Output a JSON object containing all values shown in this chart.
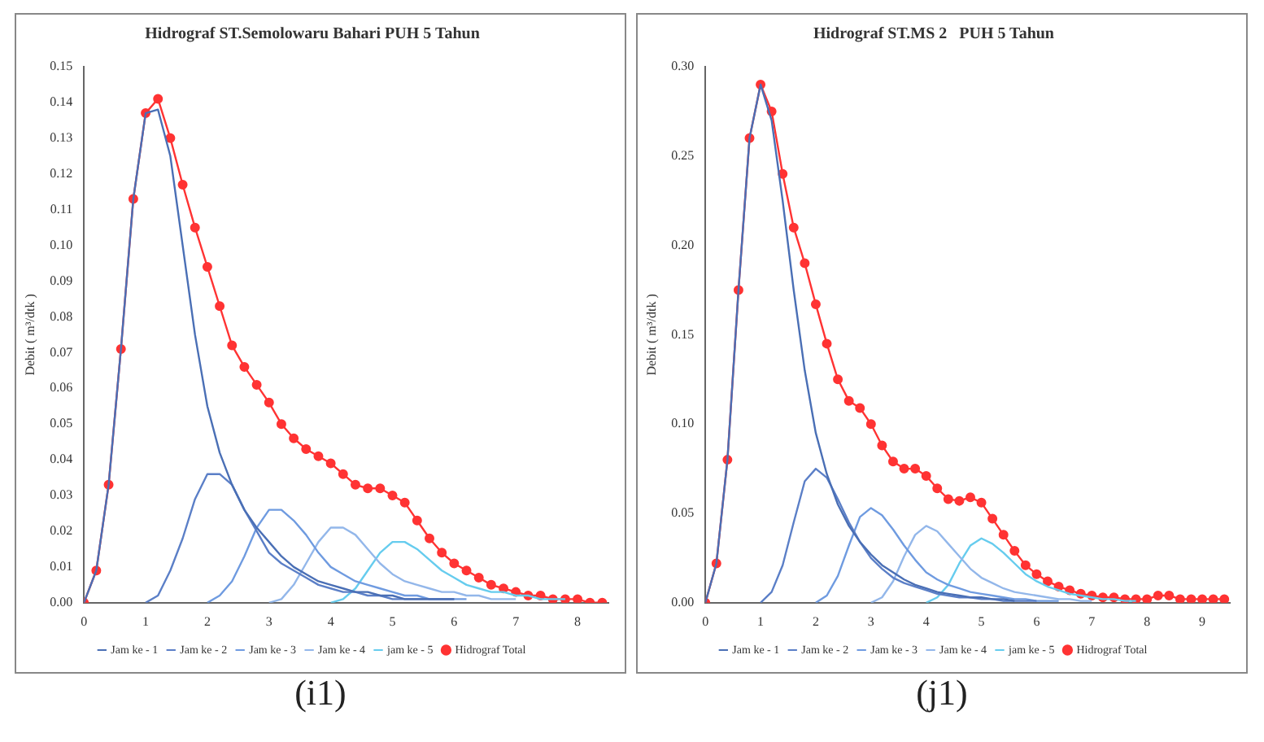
{
  "chart_data": [
    {
      "type": "line",
      "title": "Hidrograf ST.Semolowaru Bahari PUH 5 Tahun",
      "ylabel": "Debit ( m³/dtk )",
      "annotations": [
        "(i1)"
      ],
      "legend": "bottom",
      "grid": false,
      "x": [
        0,
        0.2,
        0.4,
        0.6,
        0.8,
        1,
        1.2,
        1.4,
        1.6,
        1.8,
        2,
        2.2,
        2.4,
        2.6,
        2.8,
        3,
        3.2,
        3.4,
        3.6,
        3.8,
        4,
        4.2,
        4.4,
        4.6,
        4.8,
        5,
        5.2,
        5.4,
        5.6,
        5.8,
        6,
        6.2,
        6.4,
        6.6,
        6.8,
        7,
        7.2,
        7.4,
        7.6,
        7.8,
        8,
        8.2,
        8.4
      ],
      "xlim": [
        0,
        8.5
      ],
      "xticks": [
        0,
        1,
        2,
        3,
        4,
        5,
        6,
        7,
        8
      ],
      "ylim": [
        0,
        0.15
      ],
      "yticks": [
        {
          "value": 0,
          "label": "0.00"
        },
        {
          "value": 0.01,
          "label": "0.01"
        },
        {
          "value": 0.02,
          "label": "0.02"
        },
        {
          "value": 0.03,
          "label": "0.03"
        },
        {
          "value": 0.04,
          "label": "0.04"
        },
        {
          "value": 0.05,
          "label": "0.05"
        },
        {
          "value": 0.06,
          "label": "0.06"
        },
        {
          "value": 0.07,
          "label": "0.07"
        },
        {
          "value": 0.08,
          "label": "0.08"
        },
        {
          "value": 0.09,
          "label": "0.09"
        },
        {
          "value": 0.1,
          "label": "0.10"
        },
        {
          "value": 0.11,
          "label": "0.11"
        },
        {
          "value": 0.12,
          "label": "0.12"
        },
        {
          "value": 0.13,
          "label": "0.13"
        },
        {
          "value": 0.14,
          "label": "0.14"
        },
        {
          "value": 0.15,
          "label": "0.15"
        }
      ],
      "series": [
        {
          "name": "Jam ke - 1",
          "color": "#4a6fb5",
          "marker": "none",
          "values": [
            0,
            0.009,
            0.033,
            0.071,
            0.113,
            0.137,
            0.138,
            0.125,
            0.1,
            0.075,
            0.055,
            0.042,
            0.033,
            0.026,
            0.021,
            0.017,
            0.013,
            0.01,
            0.008,
            0.006,
            0.005,
            0.004,
            0.003,
            0.003,
            0.002,
            0.002,
            0.001,
            0.001,
            0.001,
            0.001,
            0.001,
            null,
            null,
            null,
            null,
            null,
            null,
            null,
            null,
            null,
            null,
            null,
            null
          ]
        },
        {
          "name": "Jam ke - 2",
          "color": "#5b7fc7",
          "marker": "none",
          "values": [
            null,
            null,
            null,
            null,
            null,
            0,
            0.002,
            0.009,
            0.018,
            0.029,
            0.036,
            0.036,
            0.033,
            0.026,
            0.02,
            0.014,
            0.011,
            0.009,
            0.007,
            0.005,
            0.004,
            0.003,
            0.003,
            0.002,
            0.002,
            0.001,
            0.001,
            0.001,
            0.001,
            0.001,
            0.001,
            null,
            null,
            null,
            null,
            null,
            null,
            null,
            null,
            null,
            null,
            null,
            null
          ]
        },
        {
          "name": "Jam ke - 3",
          "color": "#6f9be0",
          "marker": "none",
          "values": [
            null,
            null,
            null,
            null,
            null,
            null,
            null,
            null,
            null,
            null,
            0,
            0.002,
            0.006,
            0.013,
            0.021,
            0.026,
            0.026,
            0.023,
            0.019,
            0.014,
            0.01,
            0.008,
            0.006,
            0.005,
            0.004,
            0.003,
            0.002,
            0.002,
            0.001,
            0.001,
            0.001,
            0.001,
            null,
            null,
            null,
            null,
            null,
            null,
            null,
            null,
            null,
            null,
            null
          ]
        },
        {
          "name": "Jam ke - 4",
          "color": "#93b7ea",
          "marker": "none",
          "values": [
            null,
            null,
            null,
            null,
            null,
            null,
            null,
            null,
            null,
            null,
            null,
            null,
            null,
            null,
            null,
            0,
            0.001,
            0.005,
            0.011,
            0.017,
            0.021,
            0.021,
            0.019,
            0.015,
            0.011,
            0.008,
            0.006,
            0.005,
            0.004,
            0.003,
            0.003,
            0.002,
            0.002,
            0.001,
            0.001,
            0.001,
            null,
            null,
            null,
            null,
            null,
            null,
            null
          ]
        },
        {
          "name": "jam ke - 5",
          "color": "#66ccee",
          "marker": "none",
          "values": [
            null,
            null,
            null,
            null,
            null,
            null,
            null,
            null,
            null,
            null,
            null,
            null,
            null,
            null,
            null,
            null,
            null,
            null,
            null,
            null,
            0,
            0.001,
            0.004,
            0.009,
            0.014,
            0.017,
            0.017,
            0.015,
            0.012,
            0.009,
            0.007,
            0.005,
            0.004,
            0.003,
            0.003,
            0.002,
            0.002,
            0.001,
            0.001,
            0.001,
            null,
            null,
            null
          ]
        },
        {
          "name": "Hidrograf Total",
          "color": "#ff3333",
          "marker": "circle",
          "values": [
            0,
            0.009,
            0.033,
            0.071,
            0.113,
            0.137,
            0.141,
            0.13,
            0.117,
            0.105,
            0.094,
            0.083,
            0.072,
            0.066,
            0.061,
            0.056,
            0.05,
            0.046,
            0.043,
            0.041,
            0.039,
            0.036,
            0.033,
            0.032,
            0.032,
            0.03,
            0.028,
            0.023,
            0.018,
            0.014,
            0.011,
            0.009,
            0.007,
            0.005,
            0.004,
            0.003,
            0.002,
            0.002,
            0.001,
            0.001,
            0.001,
            0,
            0
          ]
        }
      ]
    },
    {
      "type": "line",
      "title": "Hidrograf ST.MS 2   PUH 5 Tahun",
      "ylabel": "Debit ( m³/dtk )",
      "annotations": [
        "(j1)"
      ],
      "legend": "bottom",
      "grid": false,
      "x": [
        0,
        0.2,
        0.4,
        0.6,
        0.8,
        1,
        1.2,
        1.4,
        1.6,
        1.8,
        2,
        2.2,
        2.4,
        2.6,
        2.8,
        3,
        3.2,
        3.4,
        3.6,
        3.8,
        4,
        4.2,
        4.4,
        4.6,
        4.8,
        5,
        5.2,
        5.4,
        5.6,
        5.8,
        6,
        6.2,
        6.4,
        6.6,
        6.8,
        7,
        7.2,
        7.4,
        7.6,
        7.8,
        8,
        8.2,
        8.4,
        8.6,
        8.8,
        9,
        9.2,
        9.4
      ],
      "xlim": [
        0,
        9.5
      ],
      "xticks": [
        0,
        1,
        2,
        3,
        4,
        5,
        6,
        7,
        8,
        9
      ],
      "ylim": [
        0,
        0.3
      ],
      "yticks": [
        {
          "value": 0,
          "label": "0.00"
        },
        {
          "value": 0.05,
          "label": "0.05"
        },
        {
          "value": 0.1,
          "label": "0.10"
        },
        {
          "value": 0.15,
          "label": "0.15"
        },
        {
          "value": 0.2,
          "label": "0.20"
        },
        {
          "value": 0.25,
          "label": "0.25"
        },
        {
          "value": 0.3,
          "label": "0.30"
        }
      ],
      "series": [
        {
          "name": "Jam ke - 1",
          "color": "#4a6fb5",
          "marker": "none",
          "values": [
            0,
            0.022,
            0.08,
            0.175,
            0.26,
            0.29,
            0.27,
            0.225,
            0.175,
            0.13,
            0.095,
            0.072,
            0.055,
            0.043,
            0.034,
            0.027,
            0.021,
            0.017,
            0.013,
            0.01,
            0.008,
            0.006,
            0.005,
            0.004,
            0.003,
            0.003,
            0.002,
            0.002,
            0.001,
            null,
            null,
            null,
            null,
            null,
            null,
            null,
            null,
            null,
            null,
            null,
            null,
            null,
            null,
            null,
            null,
            null,
            null,
            null
          ]
        },
        {
          "name": "Jam ke - 2",
          "color": "#5b7fc7",
          "marker": "none",
          "values": [
            null,
            null,
            null,
            null,
            null,
            0,
            0.006,
            0.021,
            0.045,
            0.068,
            0.075,
            0.07,
            0.058,
            0.045,
            0.034,
            0.025,
            0.019,
            0.014,
            0.011,
            0.009,
            0.007,
            0.005,
            0.004,
            0.003,
            0.003,
            0.002,
            0.002,
            0.001,
            0.001,
            0.001,
            0.001,
            null,
            null,
            null,
            null,
            null,
            null,
            null,
            null,
            null,
            null,
            null,
            null,
            null,
            null,
            null,
            null,
            null
          ]
        },
        {
          "name": "Jam ke - 3",
          "color": "#6f9be0",
          "marker": "none",
          "values": [
            null,
            null,
            null,
            null,
            null,
            null,
            null,
            null,
            null,
            null,
            0,
            0.004,
            0.015,
            0.032,
            0.048,
            0.053,
            0.049,
            0.041,
            0.032,
            0.024,
            0.017,
            0.013,
            0.01,
            0.008,
            0.006,
            0.005,
            0.004,
            0.003,
            0.002,
            0.002,
            0.001,
            0.001,
            0.001,
            null,
            null,
            null,
            null,
            null,
            null,
            null,
            null,
            null,
            null,
            null,
            null,
            null,
            null,
            null
          ]
        },
        {
          "name": "Jam ke - 4",
          "color": "#93b7ea",
          "marker": "none",
          "values": [
            null,
            null,
            null,
            null,
            null,
            null,
            null,
            null,
            null,
            null,
            null,
            null,
            null,
            null,
            null,
            0,
            0.003,
            0.012,
            0.026,
            0.038,
            0.043,
            0.04,
            0.033,
            0.026,
            0.019,
            0.014,
            0.011,
            0.008,
            0.006,
            0.005,
            0.004,
            0.003,
            0.002,
            0.002,
            0.001,
            0.001,
            null,
            null,
            null,
            null,
            null,
            null,
            null,
            null,
            null,
            null,
            null,
            null
          ]
        },
        {
          "name": "jam ke - 5",
          "color": "#66ccee",
          "marker": "none",
          "values": [
            null,
            null,
            null,
            null,
            null,
            null,
            null,
            null,
            null,
            null,
            null,
            null,
            null,
            null,
            null,
            null,
            null,
            null,
            null,
            null,
            0,
            0.003,
            0.01,
            0.022,
            0.032,
            0.036,
            0.033,
            0.028,
            0.022,
            0.016,
            0.012,
            0.009,
            0.007,
            0.005,
            0.004,
            0.003,
            0.002,
            0.002,
            0.001,
            0.001,
            null,
            null,
            null,
            null,
            null,
            null,
            null,
            null
          ]
        },
        {
          "name": "Hidrograf Total",
          "color": "#ff3333",
          "marker": "circle",
          "values": [
            0,
            0.022,
            0.08,
            0.175,
            0.26,
            0.29,
            0.275,
            0.24,
            0.21,
            0.19,
            0.167,
            0.145,
            0.125,
            0.113,
            0.109,
            0.1,
            0.088,
            0.079,
            0.075,
            0.075,
            0.071,
            0.064,
            0.058,
            0.057,
            0.059,
            0.056,
            0.047,
            0.038,
            0.029,
            0.021,
            0.016,
            0.012,
            0.009,
            0.007,
            0.005,
            0.004,
            0.003,
            0.003,
            0.002,
            0.002,
            0.002,
            0.004,
            0.004,
            0.002,
            0.002,
            0.002,
            0.002,
            0.002
          ]
        }
      ]
    }
  ]
}
